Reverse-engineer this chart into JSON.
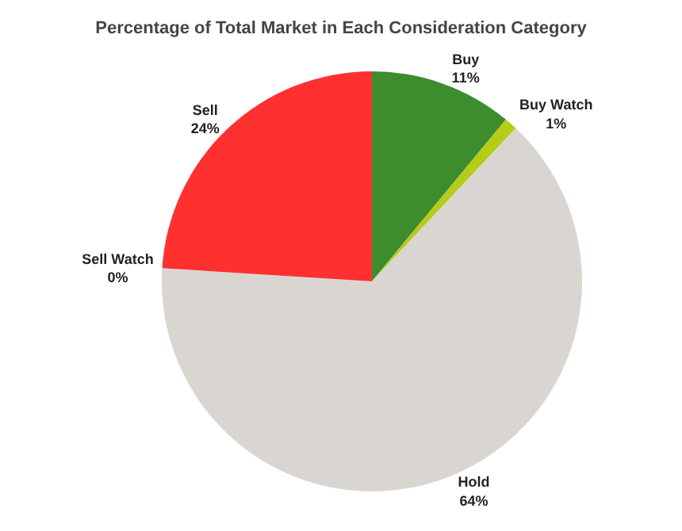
{
  "chart_data": {
    "type": "pie",
    "title": "Percentage of Total Market in Each Consideration Category",
    "categories": [
      "Buy",
      "Buy Watch",
      "Hold",
      "Sell Watch",
      "Sell"
    ],
    "values": [
      11,
      1,
      64,
      0,
      24
    ],
    "colors": [
      "#3d8c2e",
      "#b5cc18",
      "#d9d6d2",
      "#e8563a",
      "#ff3030"
    ],
    "value_labels": [
      "11%",
      "1%",
      "64%",
      "0%",
      "24%"
    ],
    "legend": false
  }
}
